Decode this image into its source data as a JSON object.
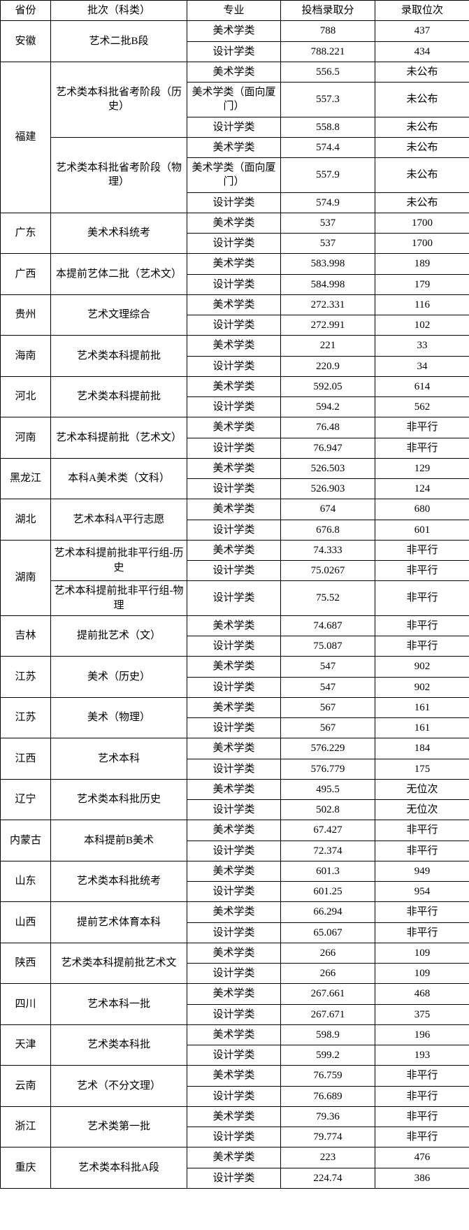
{
  "headers": [
    "省份",
    "批次（科类）",
    "专业",
    "投档录取分",
    "录取位次"
  ],
  "groups": [
    {
      "province": "安徽",
      "batches": [
        {
          "batch": "艺术二批B段",
          "rows": [
            {
              "major": "美术学类",
              "score": "788",
              "rank": "437"
            },
            {
              "major": "设计学类",
              "score": "788.221",
              "rank": "434"
            }
          ]
        }
      ]
    },
    {
      "province": "福建",
      "batches": [
        {
          "batch": "艺术类本科批省考阶段（历史）",
          "rows": [
            {
              "major": "美术学类",
              "score": "556.5",
              "rank": "未公布"
            },
            {
              "major": "美术学类（面向厦门）",
              "score": "557.3",
              "rank": "未公布"
            },
            {
              "major": "设计学类",
              "score": "558.8",
              "rank": "未公布"
            }
          ]
        },
        {
          "batch": "艺术类本科批省考阶段（物理）",
          "rows": [
            {
              "major": "美术学类",
              "score": "574.4",
              "rank": "未公布"
            },
            {
              "major": "美术学类（面向厦门）",
              "score": "557.9",
              "rank": "未公布"
            },
            {
              "major": "设计学类",
              "score": "574.9",
              "rank": "未公布"
            }
          ]
        }
      ]
    },
    {
      "province": "广东",
      "batches": [
        {
          "batch": "美术术科统考",
          "rows": [
            {
              "major": "美术学类",
              "score": "537",
              "rank": "1700"
            },
            {
              "major": "设计学类",
              "score": "537",
              "rank": "1700"
            }
          ]
        }
      ]
    },
    {
      "province": "广西",
      "batches": [
        {
          "batch": "本提前艺体二批（艺术文）",
          "rows": [
            {
              "major": "美术学类",
              "score": "583.998",
              "rank": "189"
            },
            {
              "major": "设计学类",
              "score": "584.998",
              "rank": "179"
            }
          ]
        }
      ]
    },
    {
      "province": "贵州",
      "batches": [
        {
          "batch": "艺术文理综合",
          "rows": [
            {
              "major": "美术学类",
              "score": "272.331",
              "rank": "116"
            },
            {
              "major": "设计学类",
              "score": "272.991",
              "rank": "102"
            }
          ]
        }
      ]
    },
    {
      "province": "海南",
      "batches": [
        {
          "batch": "艺术类本科提前批",
          "rows": [
            {
              "major": "美术学类",
              "score": "221",
              "rank": "33"
            },
            {
              "major": "设计学类",
              "score": "220.9",
              "rank": "34"
            }
          ]
        }
      ]
    },
    {
      "province": "河北",
      "batches": [
        {
          "batch": "艺术类本科提前批",
          "rows": [
            {
              "major": "美术学类",
              "score": "592.05",
              "rank": "614"
            },
            {
              "major": "设计学类",
              "score": "594.2",
              "rank": "562"
            }
          ]
        }
      ]
    },
    {
      "province": "河南",
      "batches": [
        {
          "batch": "艺术本科提前批（艺术文）",
          "rows": [
            {
              "major": "美术学类",
              "score": "76.48",
              "rank": "非平行"
            },
            {
              "major": "设计学类",
              "score": "76.947",
              "rank": "非平行"
            }
          ]
        }
      ]
    },
    {
      "province": "黑龙江",
      "batches": [
        {
          "batch": "本科A美术类（文科）",
          "rows": [
            {
              "major": "美术学类",
              "score": "526.503",
              "rank": "129"
            },
            {
              "major": "设计学类",
              "score": "526.903",
              "rank": "124"
            }
          ]
        }
      ]
    },
    {
      "province": "湖北",
      "batches": [
        {
          "batch": "艺术本科A平行志愿",
          "rows": [
            {
              "major": "美术学类",
              "score": "674",
              "rank": "680"
            },
            {
              "major": "设计学类",
              "score": "676.8",
              "rank": "601"
            }
          ]
        }
      ]
    },
    {
      "province": "湖南",
      "batches": [
        {
          "batch": "艺术本科提前批非平行组-历史",
          "rows": [
            {
              "major": "美术学类",
              "score": "74.333",
              "rank": "非平行"
            },
            {
              "major": "设计学类",
              "score": "75.0267",
              "rank": "非平行"
            }
          ]
        },
        {
          "batch": "艺术本科提前批非平行组-物理",
          "rows": [
            {
              "major": "设计学类",
              "score": "75.52",
              "rank": "非平行"
            }
          ]
        }
      ]
    },
    {
      "province": "吉林",
      "batches": [
        {
          "batch": "提前批艺术（文）",
          "rows": [
            {
              "major": "美术学类",
              "score": "74.687",
              "rank": "非平行"
            },
            {
              "major": "设计学类",
              "score": "75.087",
              "rank": "非平行"
            }
          ]
        }
      ]
    },
    {
      "province": "江苏",
      "batches": [
        {
          "batch": "美术（历史）",
          "rows": [
            {
              "major": "美术学类",
              "score": "547",
              "rank": "902"
            },
            {
              "major": "设计学类",
              "score": "547",
              "rank": "902"
            }
          ]
        }
      ]
    },
    {
      "province": "江苏",
      "batches": [
        {
          "batch": "美术（物理）",
          "rows": [
            {
              "major": "美术学类",
              "score": "567",
              "rank": "161"
            },
            {
              "major": "设计学类",
              "score": "567",
              "rank": "161"
            }
          ]
        }
      ]
    },
    {
      "province": "江西",
      "batches": [
        {
          "batch": "艺术本科",
          "rows": [
            {
              "major": "美术学类",
              "score": "576.229",
              "rank": "184"
            },
            {
              "major": "设计学类",
              "score": "576.779",
              "rank": "175"
            }
          ]
        }
      ]
    },
    {
      "province": "辽宁",
      "batches": [
        {
          "batch": "艺术类本科批历史",
          "rows": [
            {
              "major": "美术学类",
              "score": "495.5",
              "rank": "无位次"
            },
            {
              "major": "设计学类",
              "score": "502.8",
              "rank": "无位次"
            }
          ]
        }
      ]
    },
    {
      "province": "内蒙古",
      "batches": [
        {
          "batch": "本科提前B美术",
          "rows": [
            {
              "major": "美术学类",
              "score": "67.427",
              "rank": "非平行"
            },
            {
              "major": "设计学类",
              "score": "72.374",
              "rank": "非平行"
            }
          ]
        }
      ]
    },
    {
      "province": "山东",
      "batches": [
        {
          "batch": "艺术类本科批统考",
          "rows": [
            {
              "major": "美术学类",
              "score": "601.3",
              "rank": "949"
            },
            {
              "major": "设计学类",
              "score": "601.25",
              "rank": "954"
            }
          ]
        }
      ]
    },
    {
      "province": "山西",
      "batches": [
        {
          "batch": "提前艺术体育本科",
          "rows": [
            {
              "major": "美术学类",
              "score": "66.294",
              "rank": "非平行"
            },
            {
              "major": "设计学类",
              "score": "65.067",
              "rank": "非平行"
            }
          ]
        }
      ]
    },
    {
      "province": "陕西",
      "batches": [
        {
          "batch": "艺术类本科提前批艺术文",
          "rows": [
            {
              "major": "美术学类",
              "score": "266",
              "rank": "109"
            },
            {
              "major": "设计学类",
              "score": "266",
              "rank": "109"
            }
          ]
        }
      ]
    },
    {
      "province": "四川",
      "batches": [
        {
          "batch": "艺术本科一批",
          "rows": [
            {
              "major": "美术学类",
              "score": "267.661",
              "rank": "468"
            },
            {
              "major": "设计学类",
              "score": "267.671",
              "rank": "375"
            }
          ]
        }
      ]
    },
    {
      "province": "天津",
      "batches": [
        {
          "batch": "艺术类本科批",
          "rows": [
            {
              "major": "美术学类",
              "score": "598.9",
              "rank": "196"
            },
            {
              "major": "设计学类",
              "score": "599.2",
              "rank": "193"
            }
          ]
        }
      ]
    },
    {
      "province": "云南",
      "batches": [
        {
          "batch": "艺术（不分文理）",
          "rows": [
            {
              "major": "美术学类",
              "score": "76.759",
              "rank": "非平行"
            },
            {
              "major": "设计学类",
              "score": "76.689",
              "rank": "非平行"
            }
          ]
        }
      ]
    },
    {
      "province": "浙江",
      "batches": [
        {
          "batch": "艺术类第一批",
          "rows": [
            {
              "major": "美术学类",
              "score": "79.36",
              "rank": "非平行"
            },
            {
              "major": "设计学类",
              "score": "79.774",
              "rank": "非平行"
            }
          ]
        }
      ]
    },
    {
      "province": "重庆",
      "batches": [
        {
          "batch": "艺术类本科批A段",
          "rows": [
            {
              "major": "美术学类",
              "score": "223",
              "rank": "476"
            },
            {
              "major": "设计学类",
              "score": "224.74",
              "rank": "386"
            }
          ]
        }
      ]
    }
  ]
}
